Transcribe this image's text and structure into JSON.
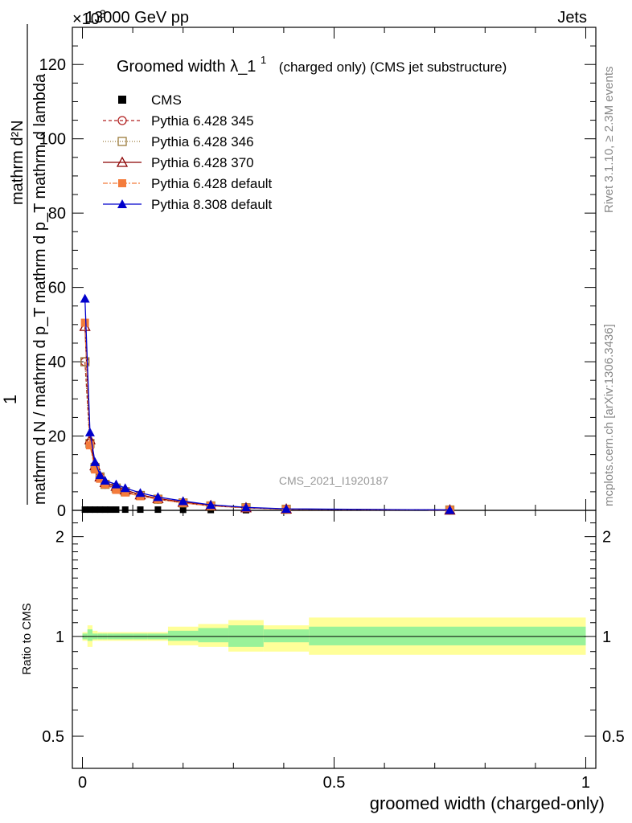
{
  "header": {
    "left": "13000 GeV pp",
    "right": "Jets",
    "exponent": "×10",
    "exponent_power": "3"
  },
  "side_labels": {
    "rivet": "Rivet 3.1.10, ≥ 2.3M events",
    "mcplots": "mcplots.cern.ch [arXiv:1306.3436]"
  },
  "watermark": "CMS_2021_I1920187",
  "chart_data": [
    {
      "type": "line",
      "title": "Groomed width",
      "title_symbol": "λ_1",
      "title_superscript": "1",
      "title_suffix": "(charged only) (CMS jet substructure)",
      "ylabel_numerator": "1",
      "ylabel_denominator": "mathrm d N / mathrm d p_T mathrm d p_T mathrm d lambda",
      "ylabel_top": "mathrm d²N",
      "ylim": [
        0,
        130
      ],
      "yticks": [
        0,
        20,
        40,
        60,
        80,
        100,
        120
      ],
      "xlim": [
        -0.02,
        1.02
      ],
      "legend_position": "top-left",
      "series": [
        {
          "name": "CMS",
          "color": "#000000",
          "marker": "square-filled",
          "x": [
            0.005,
            0.015,
            0.025,
            0.035,
            0.045,
            0.055,
            0.067,
            0.085,
            0.115,
            0.15,
            0.2,
            0.255,
            0.325,
            0.405,
            0.73
          ],
          "y": [
            0.2,
            0.2,
            0.2,
            0.2,
            0.2,
            0.2,
            0.2,
            0.2,
            0.2,
            0.2,
            0.15,
            0.1,
            0.06,
            0.03,
            0.01
          ]
        },
        {
          "name": "Pythia 6.428 345",
          "color": "#b22222",
          "marker": "circle-open",
          "dash": "4,3",
          "x": [
            0.005,
            0.015,
            0.025,
            0.035,
            0.045,
            0.067,
            0.085,
            0.115,
            0.15,
            0.2,
            0.255,
            0.325,
            0.405,
            0.73
          ],
          "y": [
            40,
            18,
            12,
            9,
            7,
            6,
            5,
            4,
            3,
            2,
            1.2,
            0.7,
            0.3,
            0.1
          ]
        },
        {
          "name": "Pythia 6.428 346",
          "color": "#9b7b3a",
          "marker": "square-open",
          "dash": "1,2",
          "x": [
            0.005,
            0.015,
            0.025,
            0.035,
            0.045,
            0.067,
            0.085,
            0.115,
            0.15,
            0.2,
            0.255,
            0.325,
            0.405,
            0.73
          ],
          "y": [
            40,
            18,
            11.5,
            9,
            7,
            6,
            5,
            4,
            3,
            2,
            1.2,
            0.7,
            0.3,
            0.1
          ]
        },
        {
          "name": "Pythia 6.428 370",
          "color": "#8b0000",
          "marker": "triangle-open",
          "dash": "",
          "x": [
            0.005,
            0.015,
            0.025,
            0.035,
            0.045,
            0.067,
            0.085,
            0.115,
            0.15,
            0.2,
            0.255,
            0.325,
            0.405,
            0.73
          ],
          "y": [
            49.5,
            19,
            12,
            9,
            7.5,
            6.5,
            5.5,
            4.2,
            3.2,
            2.2,
            1.3,
            0.7,
            0.35,
            0.1
          ]
        },
        {
          "name": "Pythia 6.428 default",
          "color": "#f47c3c",
          "marker": "square-filled",
          "dash": "6,2,2,2",
          "x": [
            0.005,
            0.015,
            0.025,
            0.035,
            0.045,
            0.067,
            0.085,
            0.115,
            0.15,
            0.2,
            0.255,
            0.325,
            0.405,
            0.73
          ],
          "y": [
            50.5,
            17.5,
            11,
            8.5,
            7,
            5.5,
            4.8,
            3.8,
            3,
            2,
            1.2,
            0.7,
            0.3,
            0.1
          ]
        },
        {
          "name": "Pythia 8.308 default",
          "color": "#0000cc",
          "marker": "triangle-filled",
          "dash": "",
          "x": [
            0.005,
            0.015,
            0.025,
            0.035,
            0.045,
            0.067,
            0.085,
            0.115,
            0.15,
            0.2,
            0.255,
            0.325,
            0.405,
            0.73
          ],
          "y": [
            57,
            21,
            13,
            9.5,
            8,
            7,
            6,
            4.7,
            3.6,
            2.5,
            1.5,
            0.8,
            0.4,
            0.12
          ]
        }
      ]
    },
    {
      "type": "area",
      "ylabel": "Ratio to CMS",
      "ylim": [
        0.4,
        2.4
      ],
      "yscale": "log",
      "yticks": [
        0.5,
        1,
        2
      ],
      "xlim": [
        -0.02,
        1.02
      ],
      "xticks": [
        0,
        0.5,
        1
      ],
      "xlabel": "groomed width (charged-only)",
      "bands": {
        "bin_edges": [
          0,
          0.01,
          0.02,
          0.03,
          0.04,
          0.05,
          0.06,
          0.075,
          0.1,
          0.13,
          0.17,
          0.23,
          0.29,
          0.36,
          0.45,
          1.0
        ],
        "inner_low": [
          0.98,
          0.97,
          0.98,
          0.98,
          0.98,
          0.98,
          0.98,
          0.98,
          0.98,
          0.98,
          0.97,
          0.96,
          0.93,
          0.96,
          0.94
        ],
        "inner_high": [
          1.02,
          1.05,
          1.02,
          1.02,
          1.02,
          1.02,
          1.02,
          1.02,
          1.02,
          1.02,
          1.04,
          1.06,
          1.08,
          1.05,
          1.07
        ],
        "outer_low": [
          0.97,
          0.93,
          0.97,
          0.97,
          0.97,
          0.97,
          0.97,
          0.97,
          0.97,
          0.97,
          0.94,
          0.93,
          0.9,
          0.9,
          0.88
        ],
        "outer_high": [
          1.03,
          1.08,
          1.04,
          1.03,
          1.03,
          1.03,
          1.03,
          1.03,
          1.03,
          1.03,
          1.07,
          1.09,
          1.12,
          1.08,
          1.14
        ],
        "inner_color": "#99f299",
        "outer_color": "#ffff99"
      }
    }
  ]
}
